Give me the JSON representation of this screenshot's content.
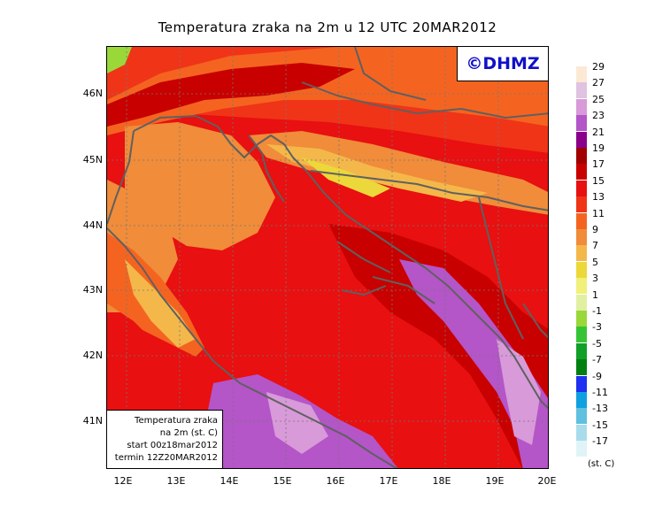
{
  "title": "Temperatura zraka na 2m u 12 UTC 20MAR2012",
  "logo": "©DHMZ",
  "info_box": [
    "Temperatura zraka",
    "na 2m (st. C)",
    "start 00z18mar2012",
    "termin 12Z20MAR2012"
  ],
  "lat_labels": [
    "46N",
    "45N",
    "44N",
    "43N",
    "42N",
    "41N"
  ],
  "lon_labels": [
    "12E",
    "13E",
    "14E",
    "15E",
    "16E",
    "17E",
    "18E",
    "19E",
    "20E"
  ],
  "legend": {
    "labels": [
      "29",
      "27",
      "25",
      "23",
      "21",
      "19",
      "17",
      "15",
      "13",
      "11",
      "9",
      "7",
      "5",
      "3",
      "1",
      "-1",
      "-3",
      "-5",
      "-7",
      "-9",
      "-11",
      "-13",
      "-15",
      "-17"
    ],
    "colors": [
      "#fbe9d6",
      "#e0c3e0",
      "#d89ad8",
      "#b455c8",
      "#8a008a",
      "#a00000",
      "#c80000",
      "#e81010",
      "#f03418",
      "#f46420",
      "#f08c3a",
      "#f4b84a",
      "#ecd83a",
      "#f0f07a",
      "#e0f0a0",
      "#9ad83a",
      "#36c436",
      "#10a028",
      "#008010",
      "#2030f0",
      "#10a0e0",
      "#60c0e0",
      "#a8dcec",
      "#e0f4f8"
    ],
    "units": "(st. C)"
  }
}
